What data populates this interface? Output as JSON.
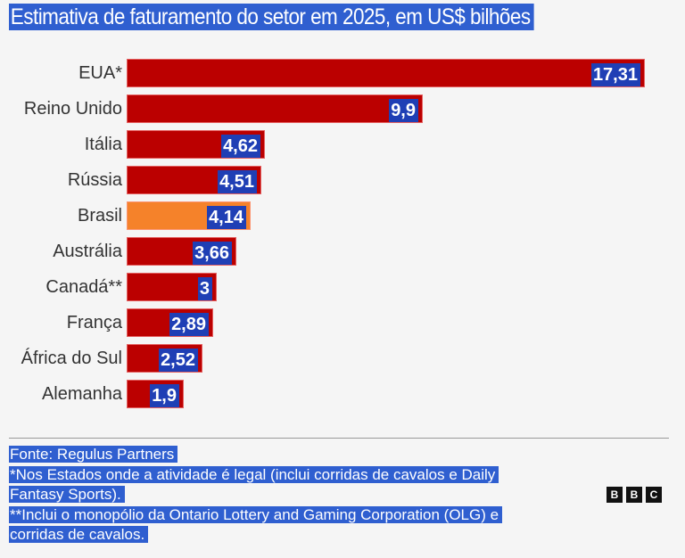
{
  "chart_data": {
    "type": "bar",
    "orientation": "horizontal",
    "title": "Estimativa de faturamento do setor em 2025, em US$ bilhões",
    "xlabel": "",
    "ylabel": "",
    "xlim": [
      0,
      17.31
    ],
    "grid": false,
    "categories": [
      "EUA*",
      "Reino Unido",
      "Itália",
      "Rússia",
      "Brasil",
      "Austrália",
      "Canadá**",
      "França",
      "África do Sul",
      "Alemanha"
    ],
    "values": [
      17.31,
      9.9,
      4.62,
      4.51,
      4.14,
      3.66,
      3,
      2.89,
      2.52,
      1.9
    ],
    "value_labels": [
      "17,31",
      "9,9",
      "4,62",
      "4,51",
      "4,14",
      "3,66",
      "3",
      "2,89",
      "2,52",
      "1,9"
    ],
    "highlight_category": "Brasil",
    "colors": {
      "default": "#bb0000",
      "highlight": "#f5822a",
      "selection": "#2f5fd0",
      "value_selection": "#1f3fb5"
    }
  },
  "footer": {
    "lines": [
      "Fonte: Regulus Partners",
      "*Nos Estados onde a atividade é legal (inclui corridas de cavalos e Daily",
      "Fantasy Sports).",
      "**Inclui o monopólio da Ontario Lottery and Gaming Corporation (OLG) e",
      "corridas de cavalos."
    ]
  },
  "logo": {
    "letters": [
      "B",
      "B",
      "C"
    ]
  }
}
